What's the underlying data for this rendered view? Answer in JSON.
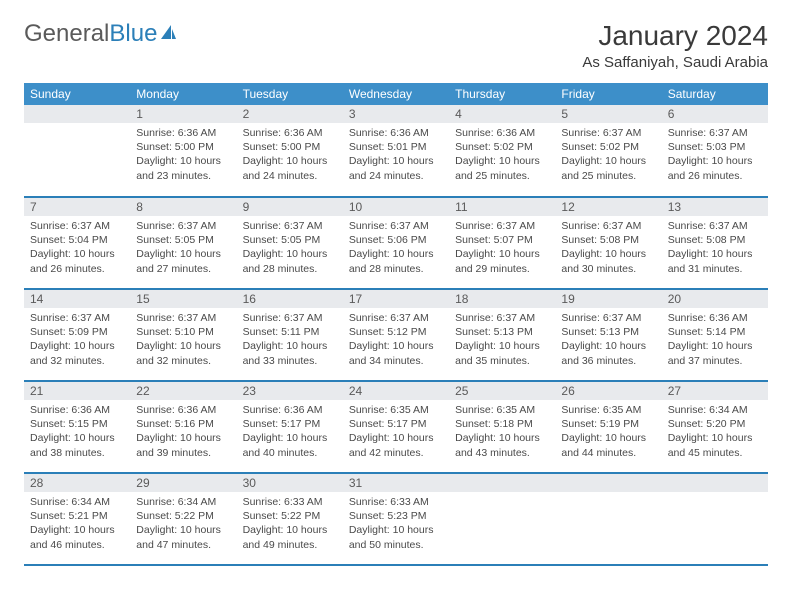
{
  "logo": {
    "text1": "General",
    "text2": "Blue"
  },
  "title": "January 2024",
  "location": "As Saffaniyah, Saudi Arabia",
  "colors": {
    "header_bg": "#3d8fc9",
    "header_text": "#ffffff",
    "daynum_bg": "#e8eaed",
    "daynum_text": "#5a5a5a",
    "border": "#2b7fb8",
    "body_text": "#4a4a4a",
    "logo_blue": "#2b7fb8"
  },
  "fonts": {
    "title_size": 28,
    "location_size": 15,
    "header_size": 12,
    "daynum_size": 12,
    "body_size": 10.5
  },
  "weekdays": [
    "Sunday",
    "Monday",
    "Tuesday",
    "Wednesday",
    "Thursday",
    "Friday",
    "Saturday"
  ],
  "grid": [
    [
      {
        "num": "",
        "sunrise": "",
        "sunset": "",
        "daylight": ""
      },
      {
        "num": "1",
        "sunrise": "Sunrise: 6:36 AM",
        "sunset": "Sunset: 5:00 PM",
        "daylight": "Daylight: 10 hours and 23 minutes."
      },
      {
        "num": "2",
        "sunrise": "Sunrise: 6:36 AM",
        "sunset": "Sunset: 5:00 PM",
        "daylight": "Daylight: 10 hours and 24 minutes."
      },
      {
        "num": "3",
        "sunrise": "Sunrise: 6:36 AM",
        "sunset": "Sunset: 5:01 PM",
        "daylight": "Daylight: 10 hours and 24 minutes."
      },
      {
        "num": "4",
        "sunrise": "Sunrise: 6:36 AM",
        "sunset": "Sunset: 5:02 PM",
        "daylight": "Daylight: 10 hours and 25 minutes."
      },
      {
        "num": "5",
        "sunrise": "Sunrise: 6:37 AM",
        "sunset": "Sunset: 5:02 PM",
        "daylight": "Daylight: 10 hours and 25 minutes."
      },
      {
        "num": "6",
        "sunrise": "Sunrise: 6:37 AM",
        "sunset": "Sunset: 5:03 PM",
        "daylight": "Daylight: 10 hours and 26 minutes."
      }
    ],
    [
      {
        "num": "7",
        "sunrise": "Sunrise: 6:37 AM",
        "sunset": "Sunset: 5:04 PM",
        "daylight": "Daylight: 10 hours and 26 minutes."
      },
      {
        "num": "8",
        "sunrise": "Sunrise: 6:37 AM",
        "sunset": "Sunset: 5:05 PM",
        "daylight": "Daylight: 10 hours and 27 minutes."
      },
      {
        "num": "9",
        "sunrise": "Sunrise: 6:37 AM",
        "sunset": "Sunset: 5:05 PM",
        "daylight": "Daylight: 10 hours and 28 minutes."
      },
      {
        "num": "10",
        "sunrise": "Sunrise: 6:37 AM",
        "sunset": "Sunset: 5:06 PM",
        "daylight": "Daylight: 10 hours and 28 minutes."
      },
      {
        "num": "11",
        "sunrise": "Sunrise: 6:37 AM",
        "sunset": "Sunset: 5:07 PM",
        "daylight": "Daylight: 10 hours and 29 minutes."
      },
      {
        "num": "12",
        "sunrise": "Sunrise: 6:37 AM",
        "sunset": "Sunset: 5:08 PM",
        "daylight": "Daylight: 10 hours and 30 minutes."
      },
      {
        "num": "13",
        "sunrise": "Sunrise: 6:37 AM",
        "sunset": "Sunset: 5:08 PM",
        "daylight": "Daylight: 10 hours and 31 minutes."
      }
    ],
    [
      {
        "num": "14",
        "sunrise": "Sunrise: 6:37 AM",
        "sunset": "Sunset: 5:09 PM",
        "daylight": "Daylight: 10 hours and 32 minutes."
      },
      {
        "num": "15",
        "sunrise": "Sunrise: 6:37 AM",
        "sunset": "Sunset: 5:10 PM",
        "daylight": "Daylight: 10 hours and 32 minutes."
      },
      {
        "num": "16",
        "sunrise": "Sunrise: 6:37 AM",
        "sunset": "Sunset: 5:11 PM",
        "daylight": "Daylight: 10 hours and 33 minutes."
      },
      {
        "num": "17",
        "sunrise": "Sunrise: 6:37 AM",
        "sunset": "Sunset: 5:12 PM",
        "daylight": "Daylight: 10 hours and 34 minutes."
      },
      {
        "num": "18",
        "sunrise": "Sunrise: 6:37 AM",
        "sunset": "Sunset: 5:13 PM",
        "daylight": "Daylight: 10 hours and 35 minutes."
      },
      {
        "num": "19",
        "sunrise": "Sunrise: 6:37 AM",
        "sunset": "Sunset: 5:13 PM",
        "daylight": "Daylight: 10 hours and 36 minutes."
      },
      {
        "num": "20",
        "sunrise": "Sunrise: 6:36 AM",
        "sunset": "Sunset: 5:14 PM",
        "daylight": "Daylight: 10 hours and 37 minutes."
      }
    ],
    [
      {
        "num": "21",
        "sunrise": "Sunrise: 6:36 AM",
        "sunset": "Sunset: 5:15 PM",
        "daylight": "Daylight: 10 hours and 38 minutes."
      },
      {
        "num": "22",
        "sunrise": "Sunrise: 6:36 AM",
        "sunset": "Sunset: 5:16 PM",
        "daylight": "Daylight: 10 hours and 39 minutes."
      },
      {
        "num": "23",
        "sunrise": "Sunrise: 6:36 AM",
        "sunset": "Sunset: 5:17 PM",
        "daylight": "Daylight: 10 hours and 40 minutes."
      },
      {
        "num": "24",
        "sunrise": "Sunrise: 6:35 AM",
        "sunset": "Sunset: 5:17 PM",
        "daylight": "Daylight: 10 hours and 42 minutes."
      },
      {
        "num": "25",
        "sunrise": "Sunrise: 6:35 AM",
        "sunset": "Sunset: 5:18 PM",
        "daylight": "Daylight: 10 hours and 43 minutes."
      },
      {
        "num": "26",
        "sunrise": "Sunrise: 6:35 AM",
        "sunset": "Sunset: 5:19 PM",
        "daylight": "Daylight: 10 hours and 44 minutes."
      },
      {
        "num": "27",
        "sunrise": "Sunrise: 6:34 AM",
        "sunset": "Sunset: 5:20 PM",
        "daylight": "Daylight: 10 hours and 45 minutes."
      }
    ],
    [
      {
        "num": "28",
        "sunrise": "Sunrise: 6:34 AM",
        "sunset": "Sunset: 5:21 PM",
        "daylight": "Daylight: 10 hours and 46 minutes."
      },
      {
        "num": "29",
        "sunrise": "Sunrise: 6:34 AM",
        "sunset": "Sunset: 5:22 PM",
        "daylight": "Daylight: 10 hours and 47 minutes."
      },
      {
        "num": "30",
        "sunrise": "Sunrise: 6:33 AM",
        "sunset": "Sunset: 5:22 PM",
        "daylight": "Daylight: 10 hours and 49 minutes."
      },
      {
        "num": "31",
        "sunrise": "Sunrise: 6:33 AM",
        "sunset": "Sunset: 5:23 PM",
        "daylight": "Daylight: 10 hours and 50 minutes."
      },
      {
        "num": "",
        "sunrise": "",
        "sunset": "",
        "daylight": ""
      },
      {
        "num": "",
        "sunrise": "",
        "sunset": "",
        "daylight": ""
      },
      {
        "num": "",
        "sunrise": "",
        "sunset": "",
        "daylight": ""
      }
    ]
  ]
}
